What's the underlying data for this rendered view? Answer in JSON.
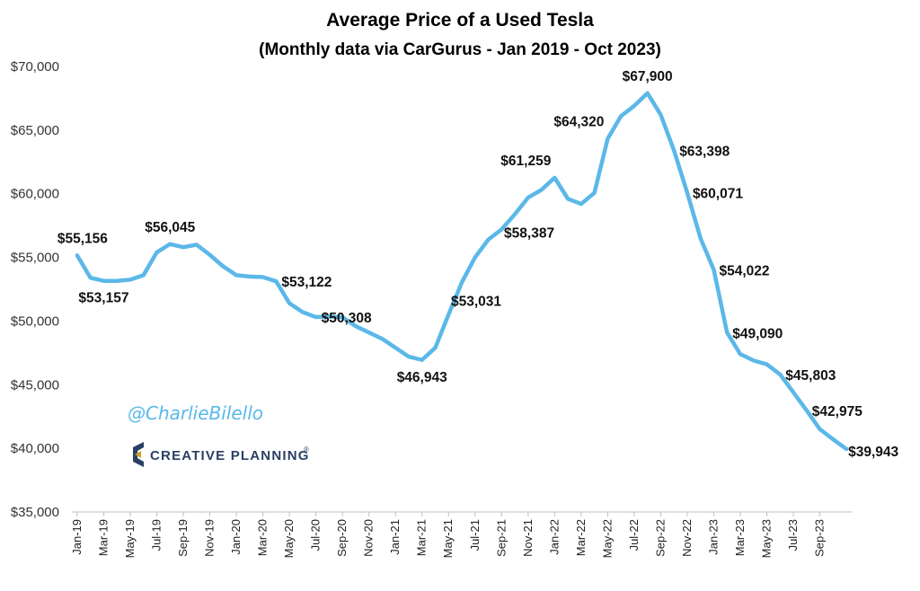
{
  "chart_data": {
    "type": "line",
    "title": "Average Price of a Used Tesla",
    "subtitle": "(Monthly data via CarGurus - Jan 2019 - Oct 2023)",
    "xlabel": "",
    "ylabel": "",
    "ylim": [
      35000,
      70000
    ],
    "y_ticks": [
      35000,
      40000,
      45000,
      50000,
      55000,
      60000,
      65000,
      70000
    ],
    "y_tick_labels": [
      "$35,000",
      "$40,000",
      "$45,000",
      "$50,000",
      "$55,000",
      "$60,000",
      "$65,000",
      "$70,000"
    ],
    "x_tick_labels": [
      "Jan-19",
      "Mar-19",
      "May-19",
      "Jul-19",
      "Sep-19",
      "Nov-19",
      "Jan-20",
      "Mar-20",
      "May-20",
      "Jul-20",
      "Sep-20",
      "Nov-20",
      "Jan-21",
      "Mar-21",
      "May-21",
      "Jul-21",
      "Sep-21",
      "Nov-21",
      "Jan-22",
      "Mar-22",
      "May-22",
      "Jul-22",
      "Sep-22",
      "Nov-22",
      "Jan-23",
      "Mar-23",
      "May-23",
      "Jul-23",
      "Sep-23"
    ],
    "grid": false,
    "series": [
      {
        "name": "Average Price of a Used Tesla",
        "color": "#5BB8E8",
        "values": [
          55156,
          53400,
          53157,
          53150,
          53250,
          53600,
          55400,
          56045,
          55800,
          56000,
          55200,
          54300,
          53600,
          53500,
          53450,
          53122,
          51400,
          50700,
          50308,
          50350,
          50300,
          49600,
          49100,
          48600,
          47900,
          47200,
          46943,
          47900,
          50500,
          53031,
          55000,
          56400,
          57200,
          58387,
          59700,
          60300,
          61259,
          59600,
          59200,
          60071,
          64320,
          66100,
          66900,
          67900,
          66200,
          63398,
          60071,
          56500,
          54022,
          49090,
          47400,
          46900,
          46600,
          45803,
          44400,
          42975,
          41500,
          40700,
          39943
        ]
      }
    ],
    "data_labels": [
      {
        "index": 0,
        "text": "$55,156",
        "pos": "above"
      },
      {
        "index": 2,
        "text": "$53,157",
        "pos": "below"
      },
      {
        "index": 7,
        "text": "$56,045",
        "pos": "above"
      },
      {
        "index": 15,
        "text": "$53,122",
        "pos": "right"
      },
      {
        "index": 18,
        "text": "$50,308",
        "pos": "right"
      },
      {
        "index": 26,
        "text": "$46,943",
        "pos": "below"
      },
      {
        "index": 29,
        "text": "$53,031",
        "pos": "below-right"
      },
      {
        "index": 36,
        "text": "$61,259",
        "pos": "above-left"
      },
      {
        "index": 33,
        "text": "$58,387",
        "pos": "below-right"
      },
      {
        "index": 40,
        "text": "$64,320",
        "pos": "above-left"
      },
      {
        "index": 43,
        "text": "$67,900",
        "pos": "above"
      },
      {
        "index": 45,
        "text": "$63,398",
        "pos": "right"
      },
      {
        "index": 46,
        "text": "$60,071",
        "pos": "right"
      },
      {
        "index": 48,
        "text": "$54,022",
        "pos": "right"
      },
      {
        "index": 49,
        "text": "$49,090",
        "pos": "right"
      },
      {
        "index": 53,
        "text": "$45,803",
        "pos": "right"
      },
      {
        "index": 55,
        "text": "$42,975",
        "pos": "right"
      },
      {
        "index": 58,
        "text": "$39,943",
        "pos": "right"
      }
    ]
  },
  "watermark": {
    "handle": "@CharlieBilello",
    "brand": "CREATIVE PLANNING",
    "brand_mark": "®",
    "logo_color": "#2A3F63",
    "logo_accent": "#C9A227"
  }
}
